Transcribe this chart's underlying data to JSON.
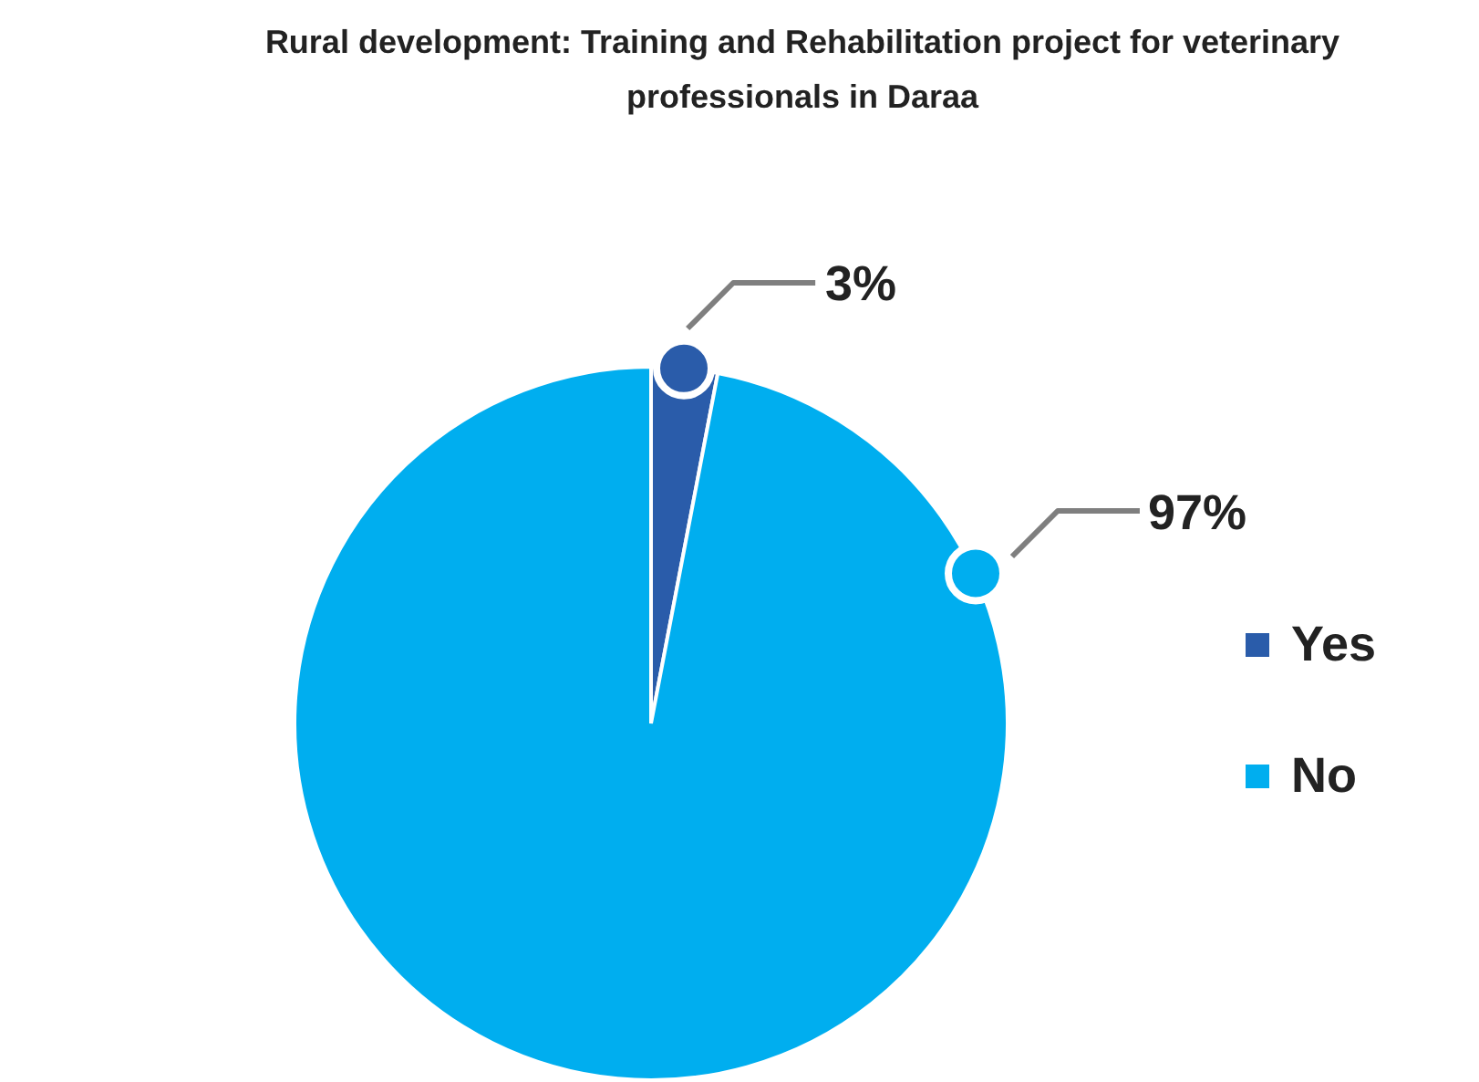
{
  "chart_data": {
    "type": "pie",
    "title": "Rural development: Training and Rehabilitation project for veterinary professionals in Daraa",
    "categories": [
      "Yes",
      "No"
    ],
    "values": [
      3,
      97
    ],
    "colors": [
      "#2a5caa",
      "#00aeef"
    ],
    "value_labels": [
      "3%",
      "97%"
    ],
    "legend": "right"
  }
}
